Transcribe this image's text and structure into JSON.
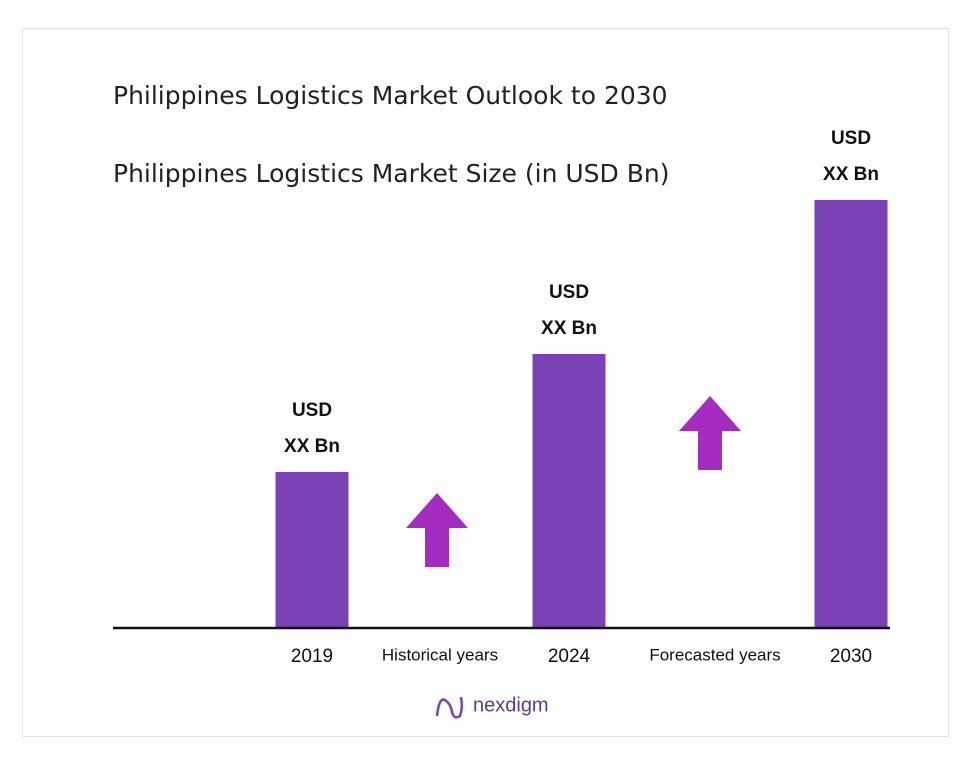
{
  "chart_data": {
    "type": "bar",
    "title": "Philippines Logistics Market Outlook to 2030",
    "subtitle": "Philippines Logistics Market Size (in USD Bn)",
    "categories": [
      "2019",
      "2024",
      "2030"
    ],
    "values": [
      156,
      274,
      428
    ],
    "value_labels": [
      "USD\nXX Bn",
      "USD\nXX Bn",
      "USD\nXX Bn"
    ],
    "color": "#7a42b4",
    "ylim": [
      0,
      450
    ],
    "annotations": [
      "Historical years",
      "Forecasted years"
    ]
  },
  "logo": {
    "text": "nexdigm"
  }
}
